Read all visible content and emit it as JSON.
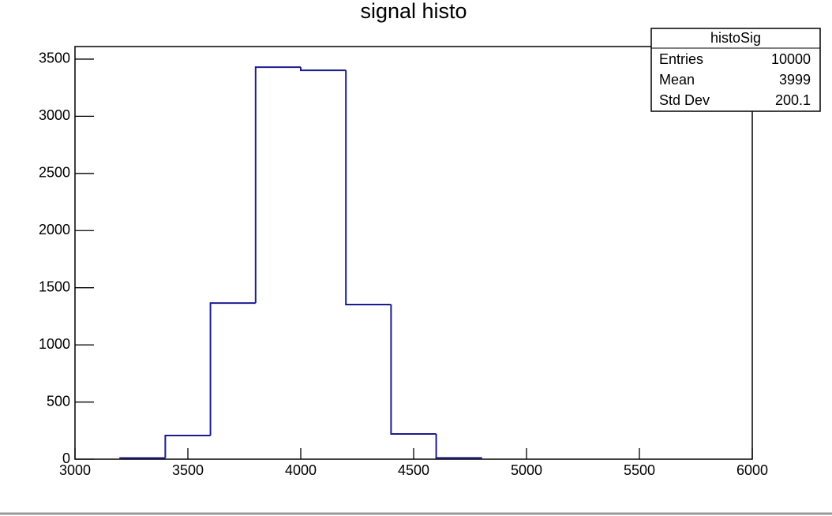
{
  "chart_data": {
    "type": "histogram",
    "title": "signal histo",
    "bins": [
      3200,
      3400,
      3600,
      3800,
      4000,
      4200,
      4400,
      4600,
      4800
    ],
    "counts": [
      10,
      207,
      1366,
      3430,
      3402,
      1353,
      221,
      11
    ],
    "color": "#1b1b8f",
    "xlim": [
      3000,
      6000
    ],
    "xticks": [
      3000,
      3500,
      4000,
      4500,
      5000,
      5500,
      6000
    ],
    "ylim": [
      0,
      3610
    ],
    "yticks": [
      0,
      500,
      1000,
      1500,
      2000,
      2500,
      3000,
      3500
    ],
    "stats": {
      "title": "histoSig",
      "rows": [
        [
          "Entries",
          10000
        ],
        [
          "Mean",
          3999
        ],
        [
          "Std Dev",
          200.1
        ]
      ]
    }
  }
}
